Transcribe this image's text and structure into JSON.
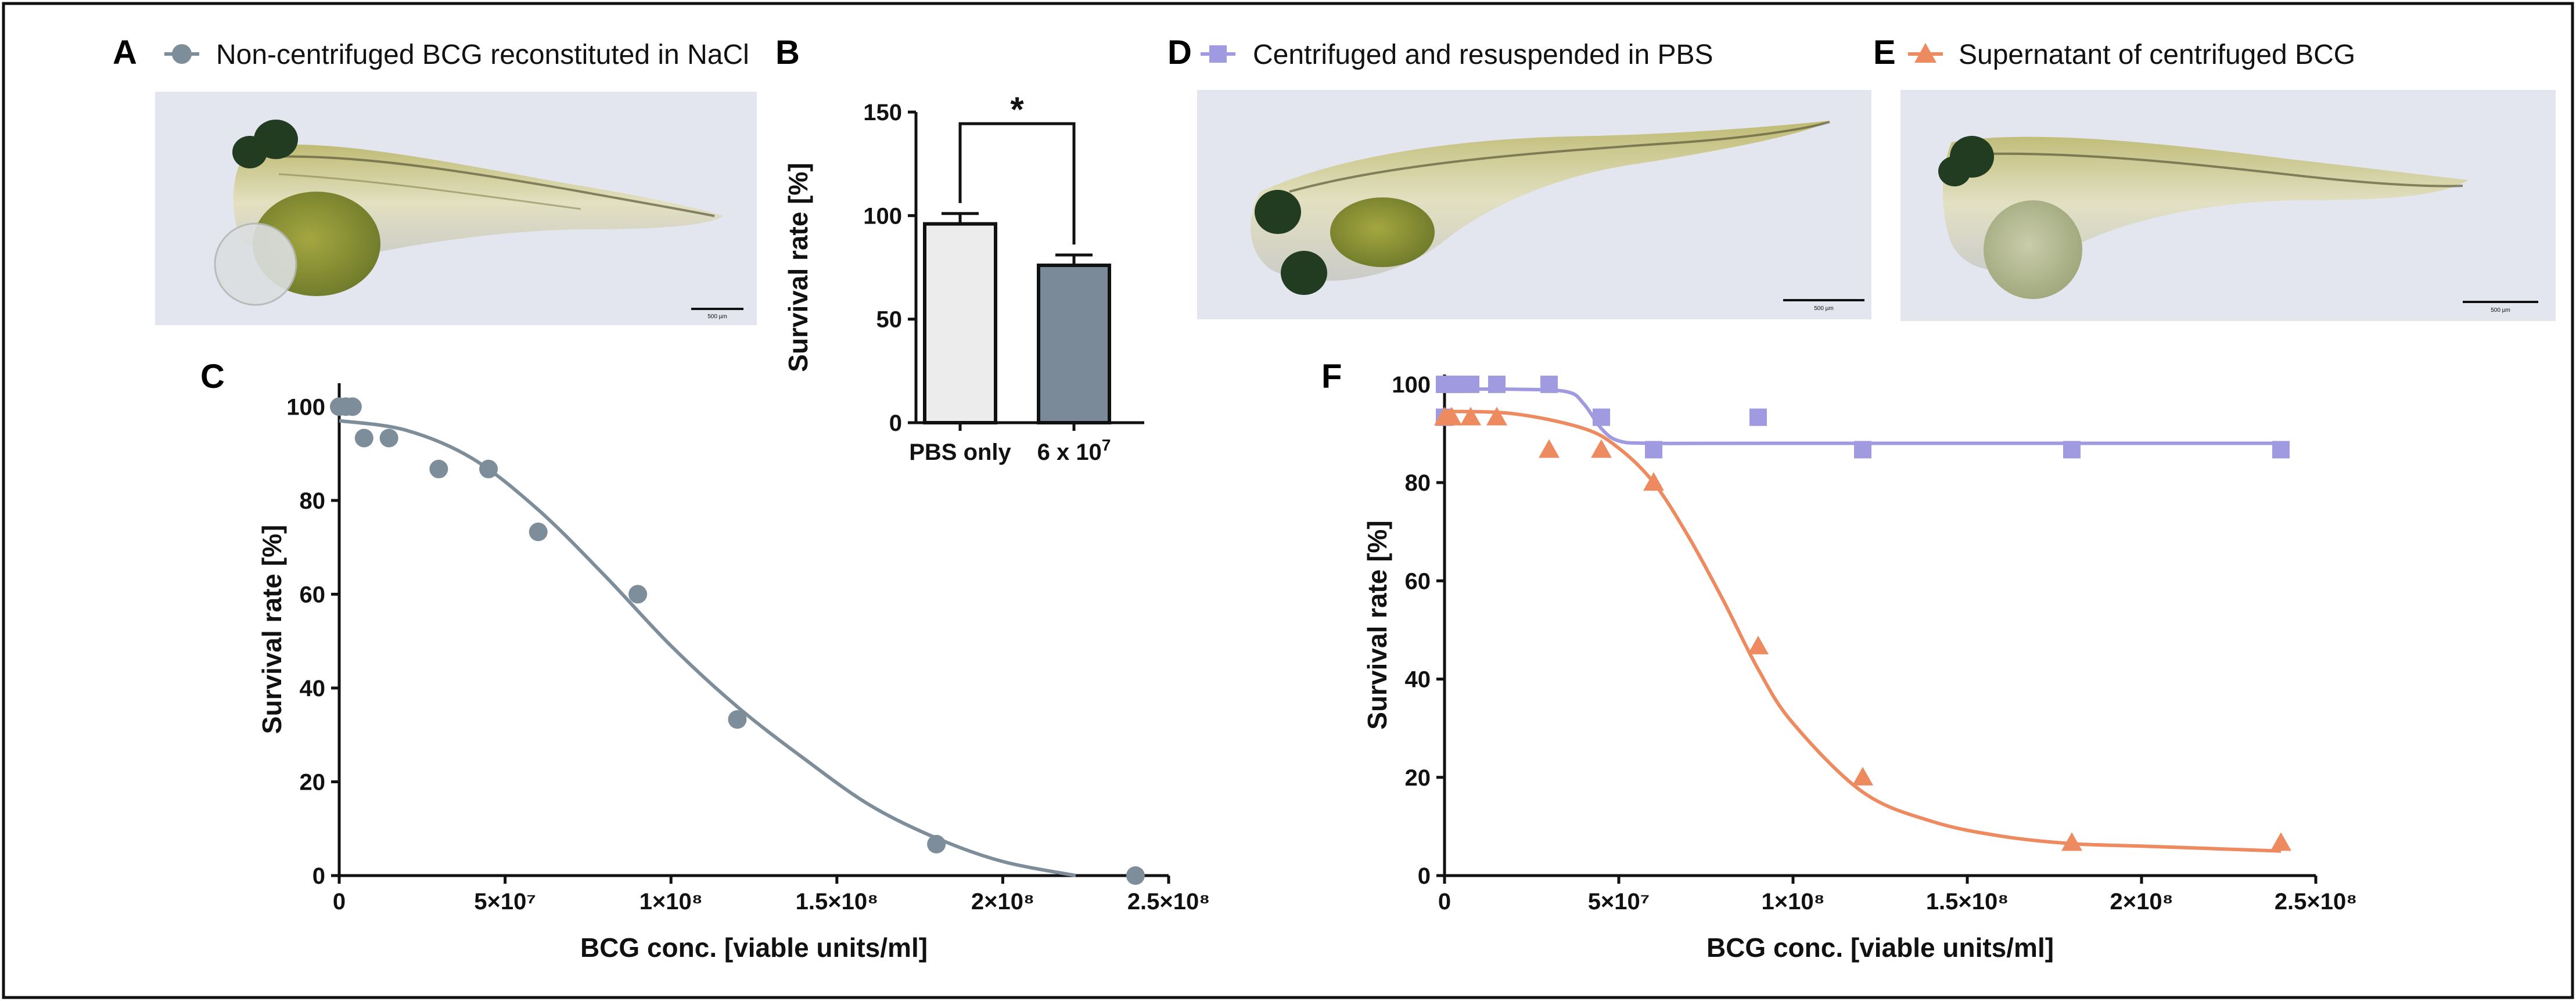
{
  "panels": {
    "A": {
      "letter": "A",
      "legend": "Non-centrifuged BCG reconstituted in NaCl",
      "scalebar": "500 µm"
    },
    "B": {
      "letter": "B"
    },
    "C": {
      "letter": "C"
    },
    "D": {
      "letter": "D",
      "legend": "Centrifuged and resuspended in PBS",
      "scalebar": "500 µm"
    },
    "E": {
      "letter": "E",
      "legend": "Supernatant of centrifuged BCG",
      "scalebar": "500 µm"
    },
    "F": {
      "letter": "F"
    }
  },
  "colors": {
    "grey_series": "#7d8e9a",
    "purple_series": "#a09ae0",
    "orange_series": "#ee8a5f",
    "bar_light": "#ececec",
    "bar_dark": "#7b8a98"
  },
  "chart_data": [
    {
      "id": "B",
      "type": "bar",
      "categories": [
        "PBS only",
        "6 x 10"
      ],
      "category_superscripts": [
        "",
        "7"
      ],
      "values": [
        96,
        76
      ],
      "errors": [
        5,
        5
      ],
      "ylabel": "Survival rate [%]",
      "ylim": [
        0,
        150
      ],
      "yticks": [
        0,
        50,
        100,
        150
      ],
      "significance": "*"
    },
    {
      "id": "C",
      "type": "scatter",
      "xlabel": "BCG conc. [viable units/ml]",
      "ylabel": "Survival rate [%]",
      "xlim": [
        0,
        250000000
      ],
      "ylim": [
        0,
        105
      ],
      "xticks": [
        0,
        50000000,
        100000000,
        150000000,
        200000000,
        250000000
      ],
      "xtick_labels": [
        "0",
        "5×10⁷",
        "1×10⁸",
        "1.5×10⁸",
        "2×10⁸",
        "2.5×10⁸"
      ],
      "yticks": [
        0,
        20,
        40,
        60,
        80,
        100
      ],
      "series": [
        {
          "name": "Non-centrifuged BCG reconstituted in NaCl",
          "marker": "circle",
          "x": [
            0,
            2000000,
            4000000,
            7500000,
            15000000,
            30000000,
            45000000,
            60000000,
            90000000,
            120000000,
            180000000,
            240000000
          ],
          "y": [
            100,
            100,
            100,
            93.3,
            93.3,
            86.7,
            86.7,
            73.3,
            60,
            33.3,
            6.7,
            0
          ],
          "fit": {
            "x": [
              0,
              20000000,
              40000000,
              60000000,
              80000000,
              100000000,
              120000000,
              140000000,
              160000000,
              180000000,
              200000000,
              222000000
            ],
            "y": [
              97,
              95,
              89,
              78,
              64,
              49,
              36,
              25,
              15,
              8,
              3,
              0
            ]
          }
        }
      ]
    },
    {
      "id": "F",
      "type": "scatter",
      "xlabel": "BCG conc. [viable units/ml]",
      "ylabel": "Survival rate [%]",
      "xlim": [
        0,
        250000000
      ],
      "ylim": [
        0,
        102
      ],
      "xticks": [
        0,
        50000000,
        100000000,
        150000000,
        200000000,
        250000000
      ],
      "xtick_labels": [
        "0",
        "5×10⁷",
        "1×10⁸",
        "1.5×10⁸",
        "2×10⁸",
        "2.5×10⁸"
      ],
      "yticks": [
        0,
        20,
        40,
        60,
        80,
        100
      ],
      "series": [
        {
          "name": "Centrifuged and resuspended in PBS",
          "marker": "square",
          "x": [
            0,
            2000000,
            4000000,
            7500000,
            15000000,
            30000000,
            45000000,
            60000000,
            90000000,
            120000000,
            180000000,
            240000000,
            0
          ],
          "y": [
            100,
            100,
            100,
            100,
            100,
            100,
            93.3,
            86.7,
            93.3,
            86.7,
            86.7,
            86.7,
            93.3
          ],
          "fit": {
            "x": [
              0,
              20000000,
              35000000,
              40000000,
              45000000,
              50000000,
              60000000,
              100000000,
              240000000
            ],
            "y": [
              99,
              99,
              98.5,
              96,
              91,
              88.5,
              88,
              88,
              88
            ]
          }
        },
        {
          "name": "Supernatant of centrifuged BCG",
          "marker": "triangle",
          "x": [
            0,
            2000000,
            7500000,
            15000000,
            30000000,
            45000000,
            60000000,
            90000000,
            120000000,
            180000000,
            240000000
          ],
          "y": [
            93.3,
            93.3,
            93.3,
            93.3,
            86.7,
            86.7,
            80,
            46.7,
            20,
            6.7,
            6.7
          ],
          "fit": {
            "x": [
              0,
              20000000,
              40000000,
              50000000,
              60000000,
              70000000,
              80000000,
              90000000,
              100000000,
              120000000,
              140000000,
              160000000,
              180000000,
              200000000,
              240000000
            ],
            "y": [
              94.5,
              94,
              91,
              87,
              80,
              69,
              56,
              42,
              31,
              17,
              11,
              8,
              6.5,
              6,
              5
            ]
          }
        }
      ]
    }
  ]
}
